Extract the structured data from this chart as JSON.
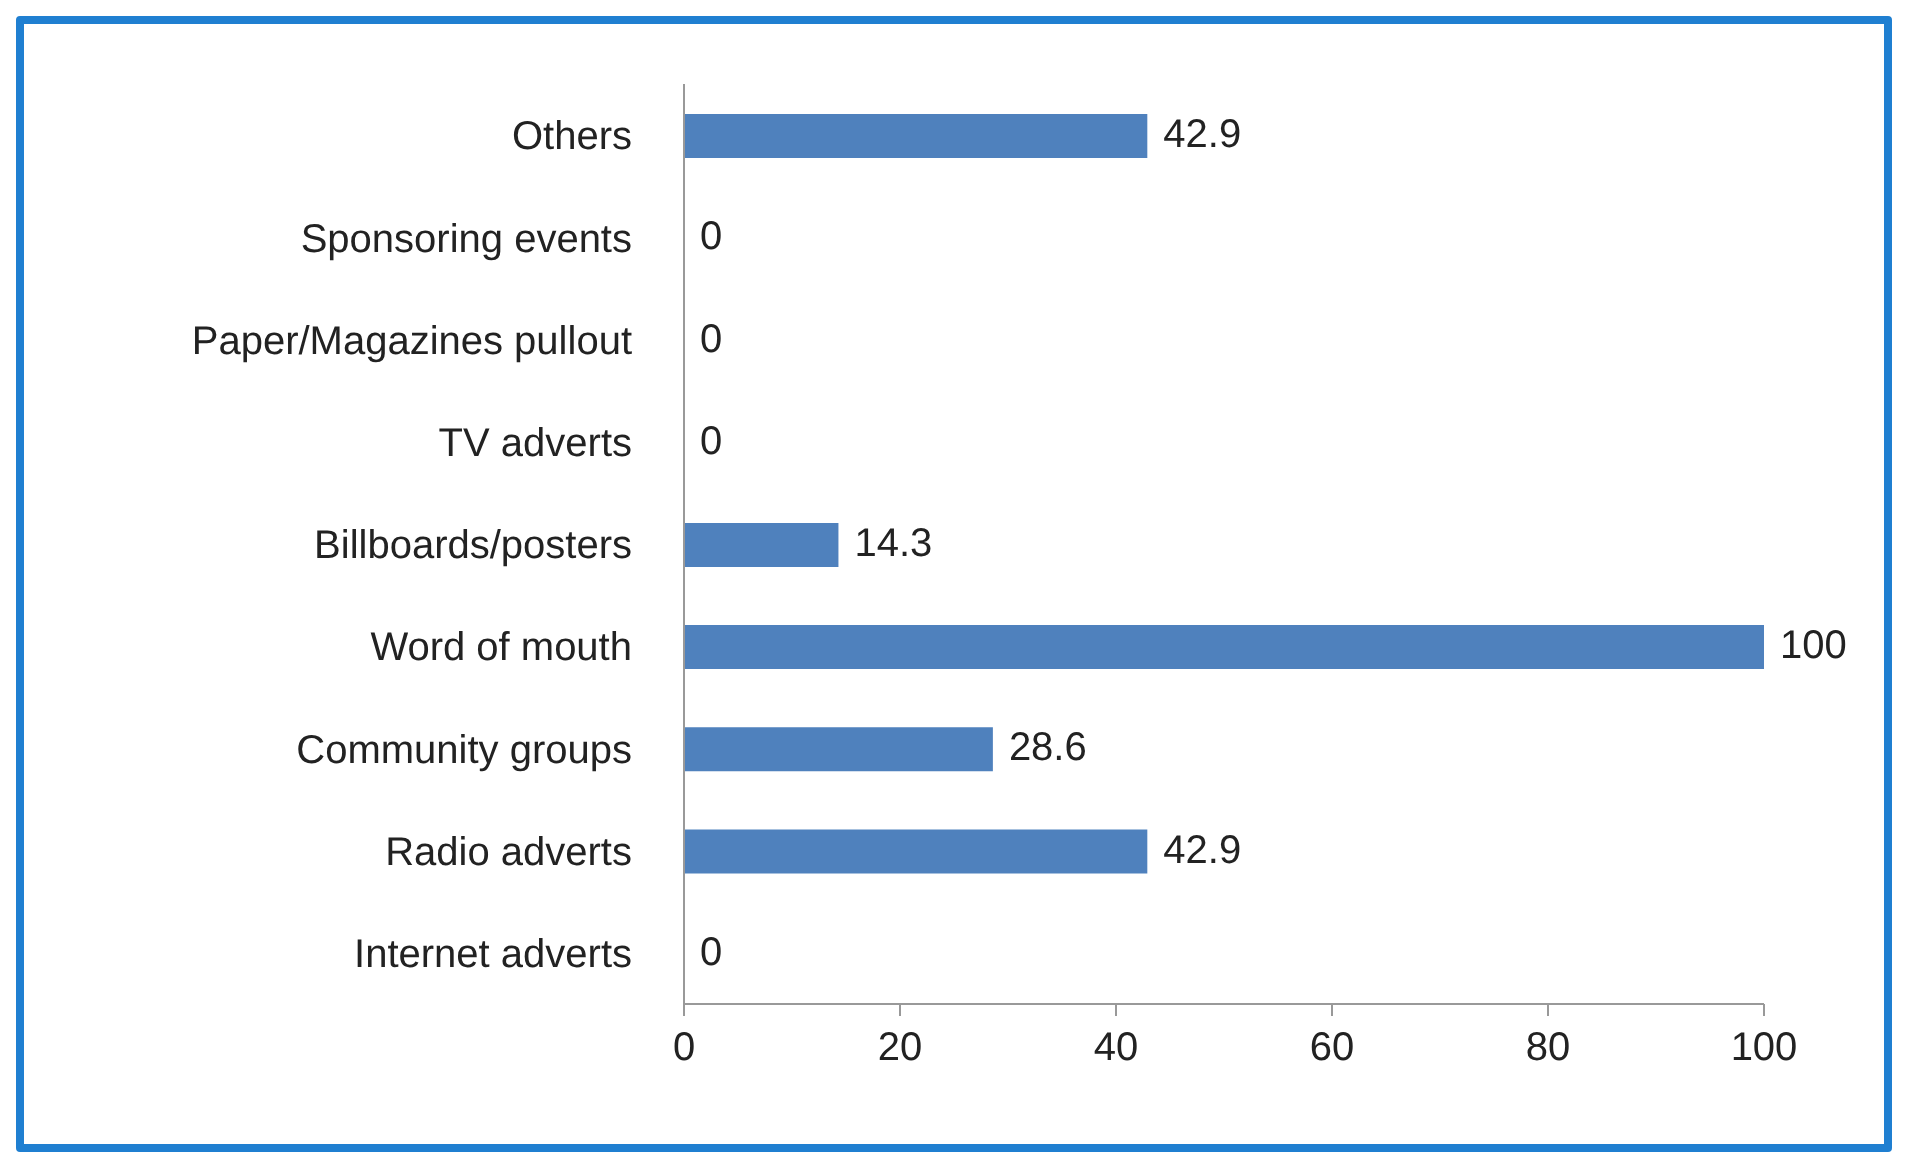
{
  "chart_data": {
    "type": "bar",
    "orientation": "horizontal",
    "categories": [
      "Others",
      "Sponsoring events",
      "Paper/Magazines pullout",
      "TV adverts",
      "Billboards/posters",
      "Word of mouth",
      "Community groups",
      "Radio adverts",
      "Internet adverts"
    ],
    "values": [
      42.9,
      0,
      0,
      0,
      14.3,
      100,
      28.6,
      42.9,
      0
    ],
    "color": "#4f81bd",
    "xlim": [
      0,
      100
    ],
    "xticks": [
      0,
      20,
      40,
      60,
      80,
      100
    ],
    "data_labels": true,
    "grid": false,
    "legend": false
  }
}
